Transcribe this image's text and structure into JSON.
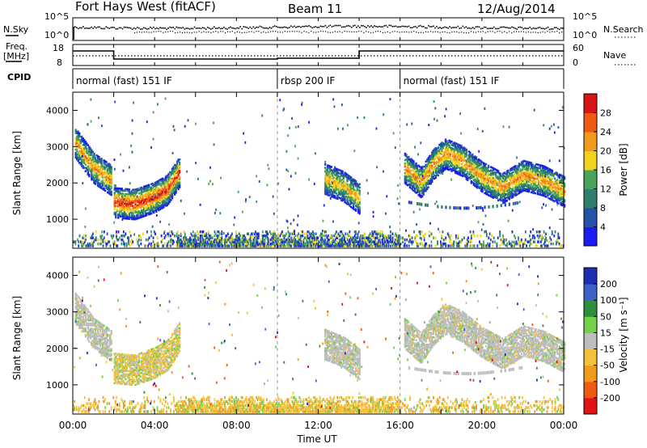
{
  "header": {
    "station": "Fort Hays West (fitACF)",
    "beam": "Beam 11",
    "date": "12/Aug/2014"
  },
  "strip_labels": {
    "nsky": "N.Sky",
    "nsky_top": "10^5",
    "nsky_bottom": "10^0",
    "nsearch": "N.Search",
    "nsearch_top": "10^5",
    "nsearch_bottom": "10^0",
    "freq": "Freq.",
    "freq_unit": "[MHz]",
    "freq_top": "18",
    "freq_bottom": "8",
    "nave": "Nave",
    "nave_top": "60",
    "nave_bottom": "0",
    "cpid": "CPID"
  },
  "cpid_segments": [
    {
      "label": "normal (fast) 151 IF",
      "start_hour": 0,
      "end_hour": 10
    },
    {
      "label": "rbsp 200 IF",
      "start_hour": 10,
      "end_hour": 16
    },
    {
      "label": "normal (fast) 151 IF",
      "start_hour": 16,
      "end_hour": 24
    }
  ],
  "chart_data": [
    {
      "type": "heatmap",
      "quantity": "power",
      "ylabel": "Slant Range [km]",
      "xlabel": "",
      "xlim": [
        0,
        24
      ],
      "ylim": [
        200,
        4500
      ],
      "x_ticks": [
        0,
        2,
        4,
        6,
        8,
        10,
        12,
        14,
        16,
        18,
        20,
        22,
        24
      ],
      "y_ticks": [
        "1000",
        "2000",
        "3000",
        "4000"
      ],
      "colorbar": {
        "label": "Power [dB]",
        "ticks": [
          "4",
          "8",
          "12",
          "16",
          "20",
          "24",
          "28"
        ],
        "colors": [
          "#1c1cf0",
          "#2452a8",
          "#2f7f6e",
          "#4aa35a",
          "#f2d21d",
          "#f39a1a",
          "#ef5a14",
          "#d91414"
        ]
      },
      "echo_bands": [
        {
          "points": [
            [
              0.1,
              3100
            ],
            [
              1,
              2400
            ],
            [
              1.9,
              2050
            ]
          ],
          "peak_db": 22
        },
        {
          "points": [
            [
              2,
              1450
            ],
            [
              3,
              1400
            ],
            [
              4,
              1600
            ],
            [
              4.6,
              1800
            ],
            [
              5.2,
              2300
            ]
          ],
          "peak_db": 28
        },
        {
          "points": [
            [
              12.3,
              2100
            ],
            [
              13.2,
              1900
            ],
            [
              14,
              1550
            ]
          ],
          "peak_db": 20
        },
        {
          "points": [
            [
              16.2,
              2400
            ],
            [
              17,
              2000
            ],
            [
              17.6,
              2500
            ],
            [
              18.2,
              2800
            ],
            [
              19,
              2600
            ],
            [
              20,
              2150
            ],
            [
              21,
              1850
            ],
            [
              22,
              2200
            ],
            [
              23,
              2050
            ],
            [
              24,
              1750
            ]
          ],
          "peak_db": 22
        }
      ]
    },
    {
      "type": "heatmap",
      "quantity": "velocity",
      "ylabel": "Slant Range [km]",
      "xlabel": "Time UT",
      "xlim": [
        0,
        24
      ],
      "ylim": [
        200,
        4500
      ],
      "x_ticks": [
        0,
        2,
        4,
        6,
        8,
        10,
        12,
        14,
        16,
        18,
        20,
        22,
        24
      ],
      "x_tick_labels": [
        "00:00",
        "04:00",
        "08:00",
        "12:00",
        "16:00",
        "20:00",
        "00:00"
      ],
      "y_ticks": [
        "1000",
        "2000",
        "3000",
        "4000"
      ],
      "colorbar": {
        "label": "Velocity [m s⁻¹]",
        "ticks": [
          "200",
          "100",
          "50",
          "15",
          "-15",
          "-50",
          "-100",
          "-200"
        ],
        "colors": [
          "#1c2fb0",
          "#3f62c8",
          "#2f8f3a",
          "#72d04a",
          "#bdbdbd",
          "#f3c23a",
          "#f39a1a",
          "#ef5a14",
          "#e01414"
        ]
      }
    }
  ]
}
